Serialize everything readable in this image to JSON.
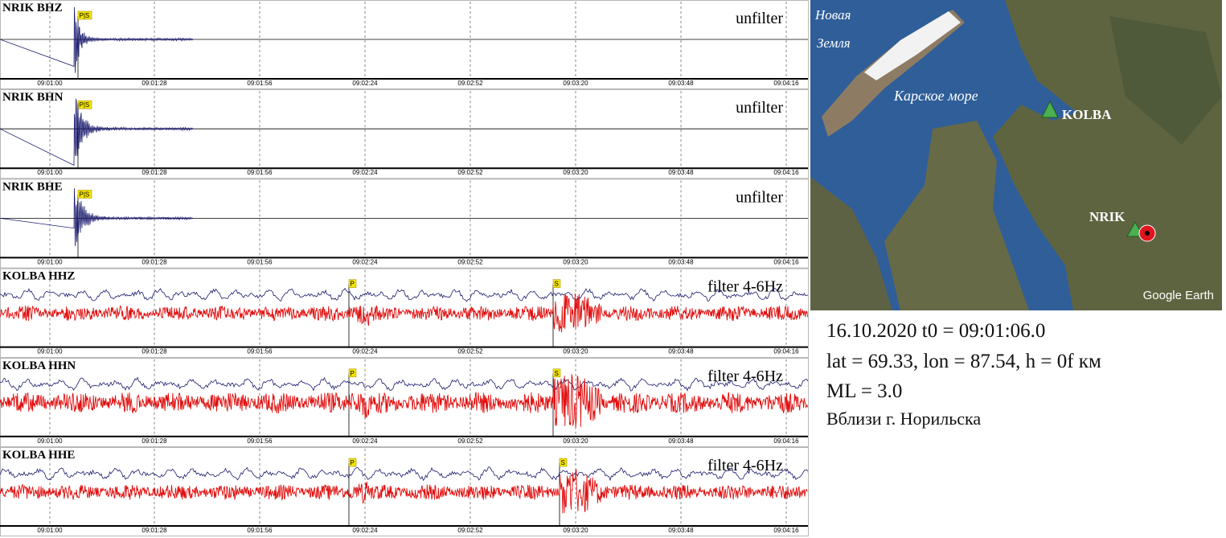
{
  "panels": [
    {
      "label": "NRIK BHZ",
      "filter": "unfilter",
      "picks": [
        "P|S"
      ]
    },
    {
      "label": "NRIK BHN",
      "filter": "unfilter",
      "picks": [
        "P|S"
      ]
    },
    {
      "label": "NRIK BHE",
      "filter": "unfilter",
      "picks": [
        "P|S"
      ]
    },
    {
      "label": "KOLBA HHZ",
      "filter": "filter 4-6Hz",
      "picks": [
        "P",
        "S"
      ]
    },
    {
      "label": "KOLBA HHN",
      "filter": "filter 4-6Hz",
      "picks": [
        "P",
        "S"
      ]
    },
    {
      "label": "KOLBA HHE",
      "filter": "filter 4-6Hz",
      "picks": [
        "P",
        "S"
      ]
    }
  ],
  "time_ticks": [
    "09:01:00",
    "09:01:28",
    "09:01:56",
    "09:02:24",
    "09:02:52",
    "09:03:20",
    "09:03:48",
    "09:04:16"
  ],
  "map": {
    "island": [
      "Новая",
      "Земля"
    ],
    "sea": "Карское море",
    "stations": [
      "KOLBA",
      "NRIK"
    ],
    "credit": "Google Earth"
  },
  "info": [
    "16.10.2020 t0 = 09:01:06.0",
    "lat = 69.33, lon = 87.54, h = 0f км",
    "ML = 3.0",
    "Вблизи г. Норильска"
  ]
}
